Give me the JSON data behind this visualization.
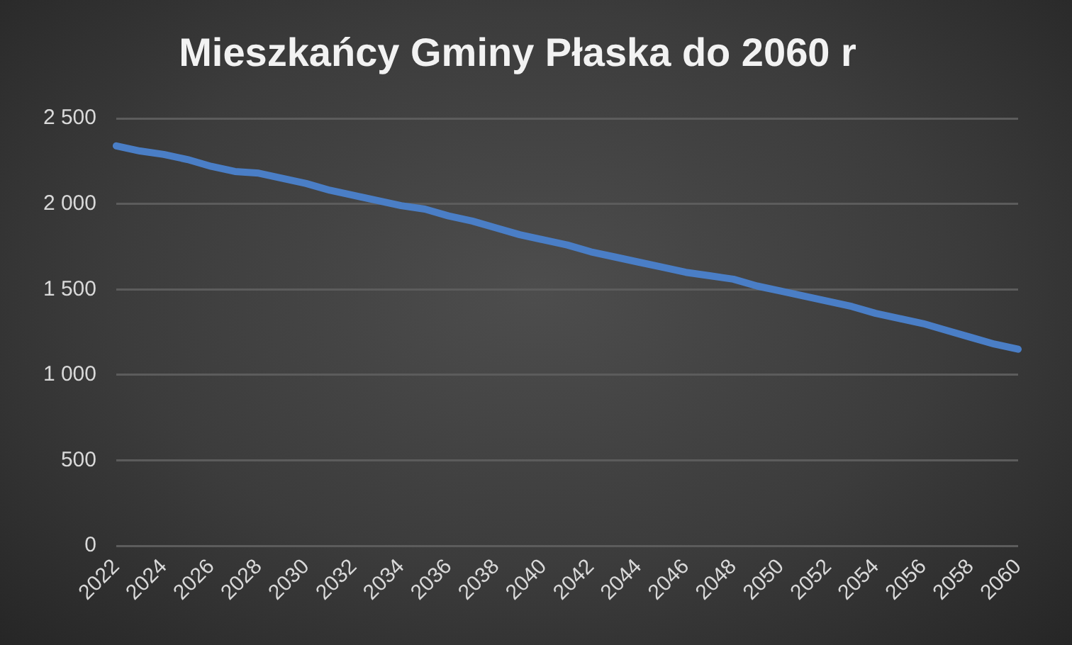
{
  "chart_data": {
    "type": "line",
    "title": "Mieszkańcy Gminy Płaska do 2060 r",
    "categories": [
      "2022",
      null,
      "2024",
      null,
      "2026",
      null,
      "2028",
      null,
      "2030",
      null,
      "2032",
      null,
      "2034",
      null,
      "2036",
      null,
      "2038",
      null,
      "2040",
      null,
      "2042",
      null,
      "2044",
      null,
      "2046",
      null,
      "2048",
      null,
      "2050",
      null,
      "2052",
      null,
      "2054",
      null,
      "2056",
      null,
      "2058",
      null,
      "2060"
    ],
    "values": [
      2340,
      2310,
      2290,
      2260,
      2220,
      2190,
      2180,
      2150,
      2120,
      2080,
      2050,
      2020,
      1990,
      1970,
      1930,
      1900,
      1860,
      1820,
      1790,
      1760,
      1720,
      1690,
      1660,
      1630,
      1600,
      1580,
      1560,
      1520,
      1490,
      1460,
      1430,
      1400,
      1360,
      1330,
      1300,
      1260,
      1220,
      1180,
      1150
    ],
    "color": "#4a7ec6",
    "ylim": [
      0,
      2500
    ],
    "yticks": [
      0,
      500,
      {
        "value": 1000,
        "label": "1 000"
      },
      {
        "value": 1500,
        "label": "1 500"
      },
      {
        "value": 2000,
        "label": "2 000"
      },
      {
        "value": 2500,
        "label": "2 500"
      }
    ],
    "grid": "y",
    "marker": "none",
    "line_style": "solid"
  }
}
